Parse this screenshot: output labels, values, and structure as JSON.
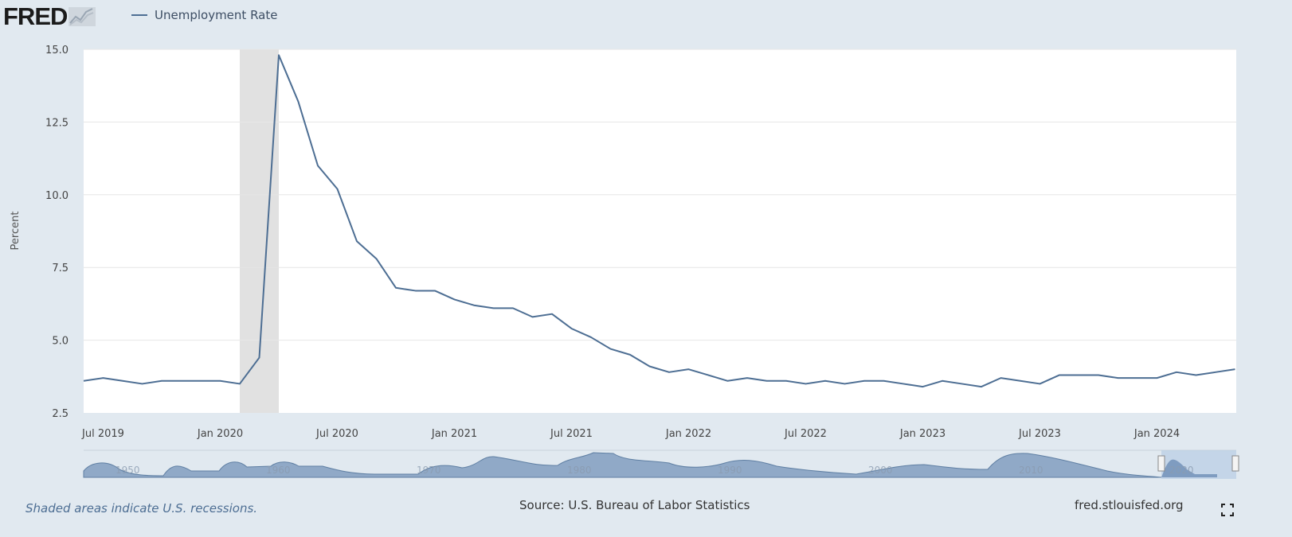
{
  "header": {
    "logo": "FRED",
    "legend_label": "Unemployment Rate"
  },
  "footer": {
    "note": "Shaded areas indicate U.S. recessions.",
    "source": "Source: U.S. Bureau of Labor Statistics",
    "site": "fred.stlouisfed.org"
  },
  "navigator": {
    "labels": [
      "1950",
      "1960",
      "1970",
      "1980",
      "1990",
      "2000",
      "2010",
      "2020"
    ]
  },
  "chart_data": {
    "type": "line",
    "title": "",
    "xlabel": "",
    "ylabel": "Percent",
    "ylim": [
      2.5,
      15.0
    ],
    "yticks": [
      "2.5",
      "5.0",
      "7.5",
      "10.0",
      "12.5",
      "15.0"
    ],
    "xticks": [
      "Jul 2019",
      "Jan 2020",
      "Jul 2020",
      "Jan 2021",
      "Jul 2021",
      "Jan 2022",
      "Jul 2022",
      "Jan 2023",
      "Jul 2023",
      "Jan 2024"
    ],
    "grid": true,
    "legend": "top-left",
    "line_color": "#4d6e93",
    "recession_shading": {
      "start": "2020-02",
      "end": "2020-04",
      "color": "#e1e1e1"
    },
    "series": [
      {
        "name": "Unemployment Rate",
        "x": [
          "2019-06",
          "2019-07",
          "2019-08",
          "2019-09",
          "2019-10",
          "2019-11",
          "2019-12",
          "2020-01",
          "2020-02",
          "2020-03",
          "2020-04",
          "2020-05",
          "2020-06",
          "2020-07",
          "2020-08",
          "2020-09",
          "2020-10",
          "2020-11",
          "2020-12",
          "2021-01",
          "2021-02",
          "2021-03",
          "2021-04",
          "2021-05",
          "2021-06",
          "2021-07",
          "2021-08",
          "2021-09",
          "2021-10",
          "2021-11",
          "2021-12",
          "2022-01",
          "2022-02",
          "2022-03",
          "2022-04",
          "2022-05",
          "2022-06",
          "2022-07",
          "2022-08",
          "2022-09",
          "2022-10",
          "2022-11",
          "2022-12",
          "2023-01",
          "2023-02",
          "2023-03",
          "2023-04",
          "2023-05",
          "2023-06",
          "2023-07",
          "2023-08",
          "2023-09",
          "2023-10",
          "2023-11",
          "2023-12",
          "2024-01",
          "2024-02",
          "2024-03",
          "2024-04",
          "2024-05"
        ],
        "values": [
          3.6,
          3.7,
          3.6,
          3.5,
          3.6,
          3.6,
          3.6,
          3.6,
          3.5,
          4.4,
          14.8,
          13.2,
          11.0,
          10.2,
          8.4,
          7.8,
          6.8,
          6.7,
          6.7,
          6.4,
          6.2,
          6.1,
          6.1,
          5.8,
          5.9,
          5.4,
          5.1,
          4.7,
          4.5,
          4.1,
          3.9,
          4.0,
          3.8,
          3.6,
          3.7,
          3.6,
          3.6,
          3.5,
          3.6,
          3.5,
          3.6,
          3.6,
          3.5,
          3.4,
          3.6,
          3.5,
          3.4,
          3.7,
          3.6,
          3.5,
          3.8,
          3.8,
          3.8,
          3.7,
          3.7,
          3.7,
          3.9,
          3.8,
          3.9,
          4.0
        ]
      }
    ]
  }
}
